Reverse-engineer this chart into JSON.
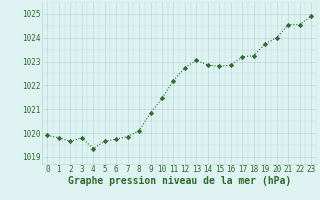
{
  "x": [
    0,
    1,
    2,
    3,
    4,
    5,
    6,
    7,
    8,
    9,
    10,
    11,
    12,
    13,
    14,
    15,
    16,
    17,
    18,
    19,
    20,
    21,
    22,
    23
  ],
  "y": [
    1019.9,
    1019.8,
    1019.65,
    1019.8,
    1019.35,
    1019.65,
    1019.75,
    1019.85,
    1020.1,
    1020.85,
    1021.45,
    1022.2,
    1022.75,
    1023.05,
    1022.85,
    1022.8,
    1022.85,
    1023.2,
    1023.25,
    1023.75,
    1024.0,
    1024.55,
    1024.55,
    1024.9
  ],
  "ylim": [
    1018.7,
    1025.5
  ],
  "yticks": [
    1019,
    1020,
    1021,
    1022,
    1023,
    1024,
    1025
  ],
  "xticks": [
    0,
    1,
    2,
    3,
    4,
    5,
    6,
    7,
    8,
    9,
    10,
    11,
    12,
    13,
    14,
    15,
    16,
    17,
    18,
    19,
    20,
    21,
    22,
    23
  ],
  "line_color": "#2d6a2d",
  "marker_color": "#2d6a2d",
  "bg_plot": "#dff2f2",
  "bg_fig": "#dff2f2",
  "grid_color": "#b8dada",
  "xlabel": "Graphe pression niveau de la mer (hPa)",
  "xlabel_color": "#2d6a2d",
  "tick_color": "#2d6a2d",
  "tick_fontsize": 5.5,
  "xlabel_fontsize": 7.0
}
